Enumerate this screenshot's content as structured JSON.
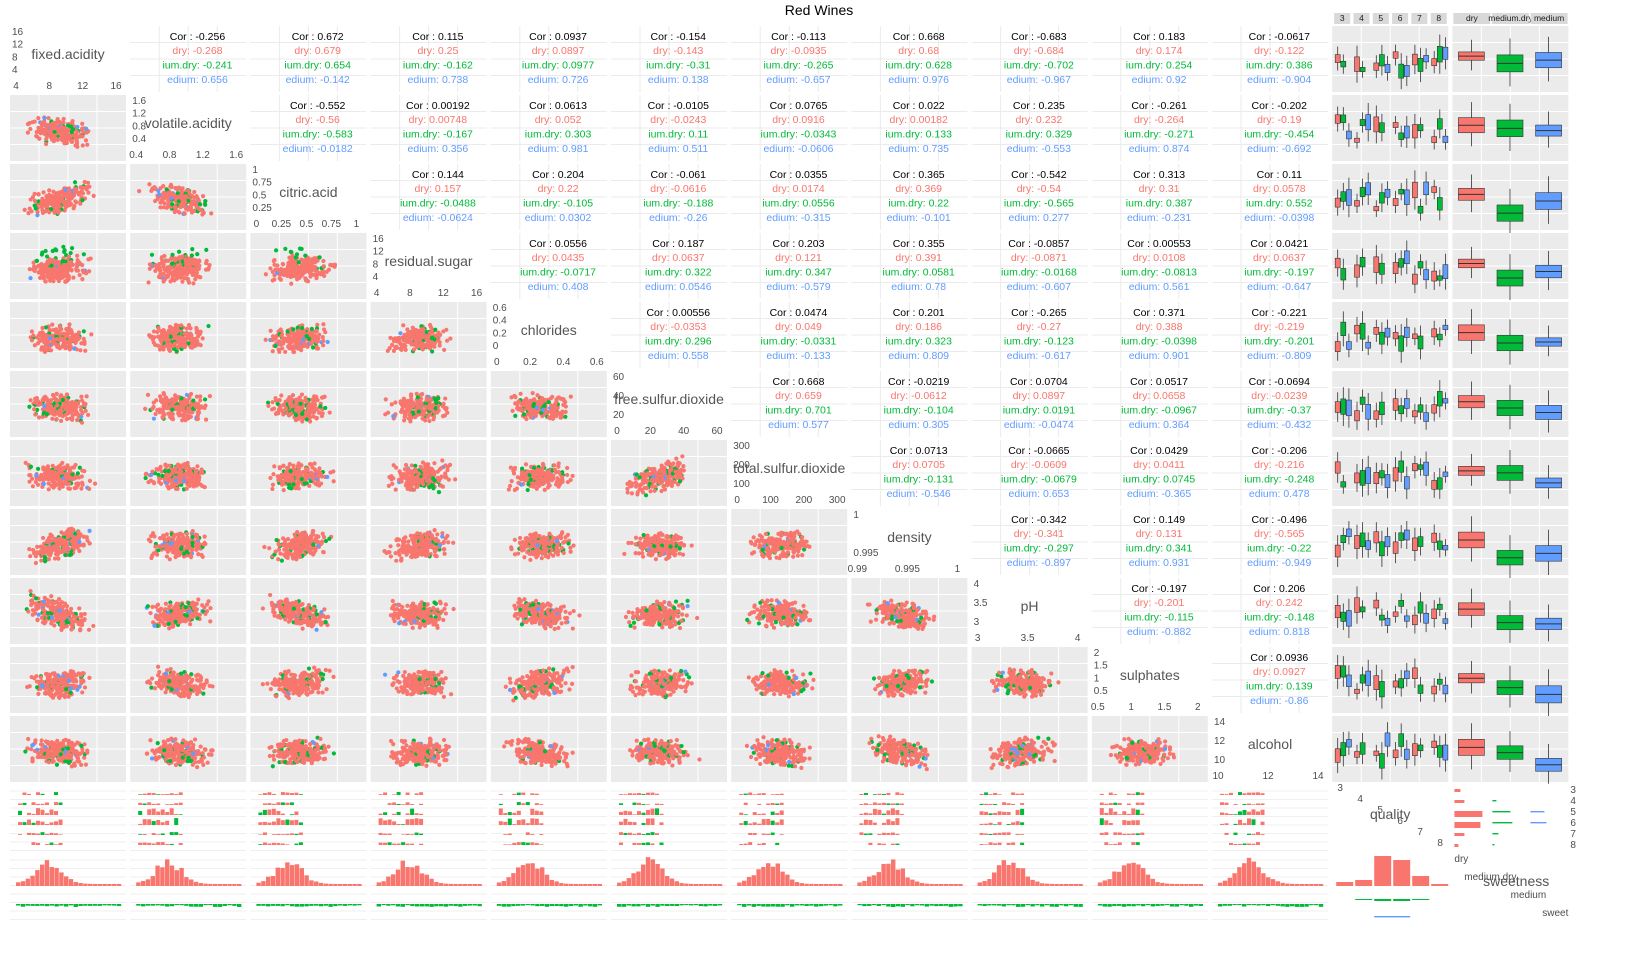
{
  "title": "Red Wines",
  "colors": {
    "dry": "#F8766D",
    "medium_dry": "#00BA38",
    "medium": "#619CFF",
    "panel_bg": "#EBEBEB",
    "grid": "#FFFFFF"
  },
  "chart_data": {
    "type": "scatter-matrix",
    "title": "Red Wines",
    "color_by": "sweetness",
    "variables": [
      "fixed.acidity",
      "volatile.acidity",
      "citric.acid",
      "residual.sugar",
      "chlorides",
      "free.sulfur.dioxide",
      "total.sulfur.dioxide",
      "density",
      "pH",
      "sulphates",
      "alcohol"
    ],
    "categorical": [
      "quality",
      "sweetness"
    ],
    "groups": [
      "dry",
      "medium.dry",
      "medium"
    ],
    "group_prefixes": [
      "dry: ",
      "ium.dry: ",
      "edium: "
    ],
    "quality_levels": [
      "3",
      "4",
      "5",
      "6",
      "7",
      "8"
    ],
    "sweetness_levels": [
      "dry",
      "medium.dry",
      "medium"
    ],
    "sweetness_axis_labels": [
      "dry",
      "medium.dry",
      "medium",
      "sweet"
    ],
    "ticks": {
      "fixed.acidity": [
        "4",
        "8",
        "12",
        "16"
      ],
      "volatile.acidity": [
        "0.4",
        "0.8",
        "1.2",
        "1.6"
      ],
      "citric.acid": [
        "0",
        "0.25",
        "0.5",
        "0.75",
        "1"
      ],
      "residual.sugar": [
        "4",
        "8",
        "12",
        "16"
      ],
      "chlorides": [
        "0",
        "0.2",
        "0.4",
        "0.6"
      ],
      "free.sulfur.dioxide": [
        "0",
        "20",
        "40",
        "60"
      ],
      "total.sulfur.dioxide": [
        "0",
        "100",
        "200",
        "300"
      ],
      "density": [
        "0.99",
        "0.995",
        "1"
      ],
      "pH": [
        "3",
        "3.5",
        "4"
      ],
      "sulphates": [
        "0.5",
        "1",
        "1.5",
        "2"
      ],
      "alcohol": [
        "10",
        "12",
        "14"
      ],
      "quality": [
        "3",
        "4",
        "5",
        "6",
        "7",
        "8"
      ]
    },
    "diag_y_ticks": {
      "fixed.acidity": [
        "16",
        "12",
        "8",
        "4"
      ],
      "volatile.acidity": [
        "1.6",
        "1.2",
        "0.8",
        "0.4"
      ],
      "citric.acid": [
        "1",
        "0.75",
        "0.5",
        "0.25"
      ],
      "residual.sugar": [
        "16",
        "12",
        "8",
        "4"
      ],
      "chlorides": [
        "0.6",
        "0.4",
        "0.2",
        "0"
      ],
      "free.sulfur.dioxide": [
        "60",
        "40",
        "20"
      ],
      "total.sulfur.dioxide": [
        "300",
        "200",
        "100"
      ],
      "density": [
        "1",
        "0.995"
      ],
      "pH": [
        "4",
        "3.5",
        "3"
      ],
      "sulphates": [
        "2",
        "1.5",
        "1",
        "0.5"
      ],
      "alcohol": [
        "14",
        "12",
        "10"
      ]
    },
    "correlations": [
      {
        "row": 0,
        "col": 1,
        "cor": "-0.256",
        "dry": "-0.268",
        "medium_dry": "-0.241",
        "medium": "0.656"
      },
      {
        "row": 0,
        "col": 2,
        "cor": "0.672",
        "dry": "0.679",
        "medium_dry": "0.654",
        "medium": "-0.142"
      },
      {
        "row": 0,
        "col": 3,
        "cor": "0.115",
        "dry": "0.25",
        "medium_dry": "-0.162",
        "medium": "0.738"
      },
      {
        "row": 0,
        "col": 4,
        "cor": "0.0937",
        "dry": "0.0897",
        "medium_dry": "0.0977",
        "medium": "0.726"
      },
      {
        "row": 0,
        "col": 5,
        "cor": "-0.154",
        "dry": "-0.143",
        "medium_dry": "-0.31",
        "medium": "0.138"
      },
      {
        "row": 0,
        "col": 6,
        "cor": "-0.113",
        "dry": "-0.0935",
        "medium_dry": "-0.265",
        "medium": "-0.657"
      },
      {
        "row": 0,
        "col": 7,
        "cor": "0.668",
        "dry": "0.68",
        "medium_dry": "0.628",
        "medium": "0.976"
      },
      {
        "row": 0,
        "col": 8,
        "cor": "-0.683",
        "dry": "-0.684",
        "medium_dry": "-0.702",
        "medium": "-0.967"
      },
      {
        "row": 0,
        "col": 9,
        "cor": "0.183",
        "dry": "0.174",
        "medium_dry": "0.254",
        "medium": "0.92"
      },
      {
        "row": 0,
        "col": 10,
        "cor": "-0.0617",
        "dry": "-0.122",
        "medium_dry": "0.386",
        "medium": "-0.904"
      },
      {
        "row": 1,
        "col": 2,
        "cor": "-0.552",
        "dry": "-0.56",
        "medium_dry": "-0.583",
        "medium": "-0.0182"
      },
      {
        "row": 1,
        "col": 3,
        "cor": "0.00192",
        "dry": "0.00748",
        "medium_dry": "-0.167",
        "medium": "0.356"
      },
      {
        "row": 1,
        "col": 4,
        "cor": "0.0613",
        "dry": "0.052",
        "medium_dry": "0.303",
        "medium": "0.981"
      },
      {
        "row": 1,
        "col": 5,
        "cor": "-0.0105",
        "dry": "-0.0243",
        "medium_dry": "0.11",
        "medium": "0.511"
      },
      {
        "row": 1,
        "col": 6,
        "cor": "0.0765",
        "dry": "0.0916",
        "medium_dry": "-0.0343",
        "medium": "-0.0606"
      },
      {
        "row": 1,
        "col": 7,
        "cor": "0.022",
        "dry": "0.00182",
        "medium_dry": "0.133",
        "medium": "0.735"
      },
      {
        "row": 1,
        "col": 8,
        "cor": "0.235",
        "dry": "0.232",
        "medium_dry": "0.329",
        "medium": "-0.553"
      },
      {
        "row": 1,
        "col": 9,
        "cor": "-0.261",
        "dry": "-0.264",
        "medium_dry": "-0.271",
        "medium": "0.874"
      },
      {
        "row": 1,
        "col": 10,
        "cor": "-0.202",
        "dry": "-0.19",
        "medium_dry": "-0.454",
        "medium": "-0.692"
      },
      {
        "row": 2,
        "col": 3,
        "cor": "0.144",
        "dry": "0.157",
        "medium_dry": "-0.0488",
        "medium": "-0.0624"
      },
      {
        "row": 2,
        "col": 4,
        "cor": "0.204",
        "dry": "0.22",
        "medium_dry": "-0.105",
        "medium": "0.0302"
      },
      {
        "row": 2,
        "col": 5,
        "cor": "-0.061",
        "dry": "-0.0616",
        "medium_dry": "-0.188",
        "medium": "-0.26"
      },
      {
        "row": 2,
        "col": 6,
        "cor": "0.0355",
        "dry": "0.0174",
        "medium_dry": "0.0556",
        "medium": "-0.315"
      },
      {
        "row": 2,
        "col": 7,
        "cor": "0.365",
        "dry": "0.369",
        "medium_dry": "0.22",
        "medium": "-0.101"
      },
      {
        "row": 2,
        "col": 8,
        "cor": "-0.542",
        "dry": "-0.54",
        "medium_dry": "-0.565",
        "medium": "0.277"
      },
      {
        "row": 2,
        "col": 9,
        "cor": "0.313",
        "dry": "0.31",
        "medium_dry": "0.387",
        "medium": "-0.231"
      },
      {
        "row": 2,
        "col": 10,
        "cor": "0.11",
        "dry": "0.0578",
        "medium_dry": "0.552",
        "medium": "-0.0398"
      },
      {
        "row": 3,
        "col": 4,
        "cor": "0.0556",
        "dry": "0.0435",
        "medium_dry": "-0.0717",
        "medium": "0.408"
      },
      {
        "row": 3,
        "col": 5,
        "cor": "0.187",
        "dry": "0.0637",
        "medium_dry": "0.322",
        "medium": "0.0546"
      },
      {
        "row": 3,
        "col": 6,
        "cor": "0.203",
        "dry": "0.121",
        "medium_dry": "0.347",
        "medium": "-0.579"
      },
      {
        "row": 3,
        "col": 7,
        "cor": "0.355",
        "dry": "0.391",
        "medium_dry": "0.0581",
        "medium": "0.78"
      },
      {
        "row": 3,
        "col": 8,
        "cor": "-0.0857",
        "dry": "-0.0871",
        "medium_dry": "-0.0168",
        "medium": "-0.607"
      },
      {
        "row": 3,
        "col": 9,
        "cor": "0.00553",
        "dry": "0.0108",
        "medium_dry": "-0.0813",
        "medium": "0.561"
      },
      {
        "row": 3,
        "col": 10,
        "cor": "0.0421",
        "dry": "0.0637",
        "medium_dry": "-0.197",
        "medium": "-0.647"
      },
      {
        "row": 4,
        "col": 5,
        "cor": "0.00556",
        "dry": "-0.0353",
        "medium_dry": "0.296",
        "medium": "0.558"
      },
      {
        "row": 4,
        "col": 6,
        "cor": "0.0474",
        "dry": "0.049",
        "medium_dry": "-0.0331",
        "medium": "-0.133"
      },
      {
        "row": 4,
        "col": 7,
        "cor": "0.201",
        "dry": "0.186",
        "medium_dry": "0.323",
        "medium": "0.809"
      },
      {
        "row": 4,
        "col": 8,
        "cor": "-0.265",
        "dry": "-0.27",
        "medium_dry": "-0.123",
        "medium": "-0.617"
      },
      {
        "row": 4,
        "col": 9,
        "cor": "0.371",
        "dry": "0.388",
        "medium_dry": "-0.0398",
        "medium": "0.901"
      },
      {
        "row": 4,
        "col": 10,
        "cor": "-0.221",
        "dry": "-0.219",
        "medium_dry": "-0.201",
        "medium": "-0.809"
      },
      {
        "row": 5,
        "col": 6,
        "cor": "0.668",
        "dry": "0.659",
        "medium_dry": "0.701",
        "medium": "0.577"
      },
      {
        "row": 5,
        "col": 7,
        "cor": "-0.0219",
        "dry": "-0.0612",
        "medium_dry": "-0.104",
        "medium": "0.305"
      },
      {
        "row": 5,
        "col": 8,
        "cor": "0.0704",
        "dry": "0.0897",
        "medium_dry": "0.0191",
        "medium": "-0.0474"
      },
      {
        "row": 5,
        "col": 9,
        "cor": "0.0517",
        "dry": "0.0658",
        "medium_dry": "-0.0967",
        "medium": "0.364"
      },
      {
        "row": 5,
        "col": 10,
        "cor": "-0.0694",
        "dry": "-0.0239",
        "medium_dry": "-0.37",
        "medium": "-0.432"
      },
      {
        "row": 6,
        "col": 7,
        "cor": "0.0713",
        "dry": "0.0705",
        "medium_dry": "-0.131",
        "medium": "-0.546"
      },
      {
        "row": 6,
        "col": 8,
        "cor": "-0.0665",
        "dry": "-0.0609",
        "medium_dry": "-0.0679",
        "medium": "0.653"
      },
      {
        "row": 6,
        "col": 9,
        "cor": "0.0429",
        "dry": "0.0411",
        "medium_dry": "0.0745",
        "medium": "-0.365"
      },
      {
        "row": 6,
        "col": 10,
        "cor": "-0.206",
        "dry": "-0.216",
        "medium_dry": "-0.248",
        "medium": "0.478"
      },
      {
        "row": 7,
        "col": 8,
        "cor": "-0.342",
        "dry": "-0.341",
        "medium_dry": "-0.297",
        "medium": "-0.897"
      },
      {
        "row": 7,
        "col": 9,
        "cor": "0.149",
        "dry": "0.131",
        "medium_dry": "0.341",
        "medium": "0.931"
      },
      {
        "row": 7,
        "col": 10,
        "cor": "-0.496",
        "dry": "-0.565",
        "medium_dry": "-0.22",
        "medium": "-0.949"
      },
      {
        "row": 8,
        "col": 9,
        "cor": "-0.197",
        "dry": "-0.201",
        "medium_dry": "-0.115",
        "medium": "-0.882"
      },
      {
        "row": 8,
        "col": 10,
        "cor": "0.206",
        "dry": "0.242",
        "medium_dry": "-0.148",
        "medium": "0.818"
      },
      {
        "row": 9,
        "col": 10,
        "cor": "0.0936",
        "dry": "0.0927",
        "medium_dry": "0.139",
        "medium": "-0.86"
      }
    ],
    "legend": "none",
    "grid": true
  }
}
